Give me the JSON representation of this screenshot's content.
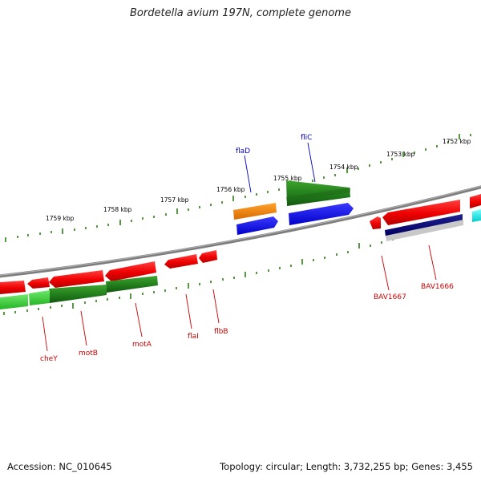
{
  "title": "Bordetella avium 197N, complete genome",
  "accession": "Accession: NC_010645",
  "stats": "Topology: circular; Length: 3,732,255 bp; Genes: 3,455",
  "colors": {
    "backbone": "#8a8a8a",
    "tick": "#2e7d18",
    "tick_label": "#000000",
    "label_red": "#cc0000",
    "label_blue": "#0000cc"
  },
  "scale_labels": [
    "1759 kbp",
    "1758 kbp",
    "1757 kbp",
    "1756 kbp",
    "1755 kbp",
    "1754 kbp",
    "1753 kbp",
    "1752 kbp"
  ],
  "gene_labels": {
    "flaD": "flaD",
    "fliC": "fliC",
    "cheY": "cheY",
    "motB": "motB",
    "motA": "motA",
    "flaI": "flaI",
    "flbB": "flbB",
    "BAV1667": "BAV1667",
    "BAV1666": "BAV1666"
  }
}
